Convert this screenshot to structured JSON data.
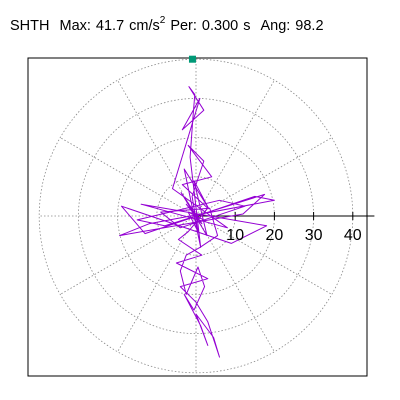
{
  "header": {
    "station": "SHTH",
    "max_label": "Max:",
    "max_value": "41.7",
    "max_unit_base": "cm/s",
    "max_unit_exp": "2",
    "per_label": "Per:",
    "per_value": "0.300",
    "per_unit": "s",
    "ang_label": "Ang:",
    "ang_value": "98.2"
  },
  "colors": {
    "trace": "#9400d3",
    "marker": "#009977",
    "grid": "#888888",
    "axis": "#000000"
  },
  "chart_data": {
    "type": "line",
    "title": "SHTH Max: 41.7 cm/s2 Per: 0.300 s Ang: 98.2",
    "polar": true,
    "radial_ticks": [
      10,
      20,
      30,
      40
    ],
    "radial_tick_labels": [
      "10",
      "20",
      "30",
      "40"
    ],
    "rmax": 45,
    "angular_grid_step_deg": 30,
    "grid": true,
    "max_point": {
      "x": -0.9,
      "y": 40.0
    },
    "series": [
      {
        "x": [
          0,
          -2.5,
          1.5,
          -3.8,
          2.8,
          -0.5,
          3.2,
          -3.0,
          1.2,
          -1.5,
          -0.8,
          -0.3,
          -1.8,
          2.0,
          -3.5,
          1.0,
          -6.0,
          8.0,
          -14.0,
          18.0,
          9.0,
          -19.0,
          -13.0,
          15.0,
          20.0,
          -12.0,
          -19.5,
          12.0,
          17.5,
          -8.0,
          -15.0,
          6.0,
          12.5,
          -4.0,
          -9.0,
          3.5,
          5.5,
          1.0,
          -2.5,
          -4.0,
          -2.5,
          0.5,
          2.2,
          -0.5,
          -3.0,
          1.2,
          3.0,
          0.0,
          4.5,
          6.0,
          4.0,
          3.0,
          0.0,
          -4.0,
          3.0,
          -5.0,
          1.5,
          -4.5,
          -2.0,
          3.0,
          -3.5,
          4.0,
          -2.0,
          2.0,
          -1.0,
          0.5,
          -2.0,
          2.0,
          0.0
        ],
        "y": [
          0,
          3.0,
          -2.0,
          6.0,
          -5.0,
          9.0,
          2.0,
          12.0,
          -8.0,
          15.0,
          25.0,
          31.0,
          33.0,
          27.0,
          22.0,
          30.0,
          7.0,
          -3.0,
          3.0,
          -2.5,
          -7.0,
          2.5,
          -4.5,
          5.0,
          4.0,
          -2.0,
          -5.0,
          0.5,
          5.5,
          -2.5,
          -1.0,
          4.0,
          2.5,
          -3.0,
          1.0,
          2.0,
          -5.0,
          -8.0,
          -10.0,
          -14.0,
          -20.0,
          -13.0,
          -18.0,
          -24.0,
          -20.0,
          -28.0,
          -33.0,
          -25.0,
          -31.0,
          -36.0,
          -30.0,
          -27.0,
          -22.0,
          -18.0,
          -16.0,
          -12.0,
          -10.0,
          -6.0,
          -4.0,
          2.0,
          8.0,
          10.0,
          18.0,
          14.0,
          5.0,
          -4.0,
          1.0,
          -1.0,
          0.0
        ]
      }
    ]
  }
}
